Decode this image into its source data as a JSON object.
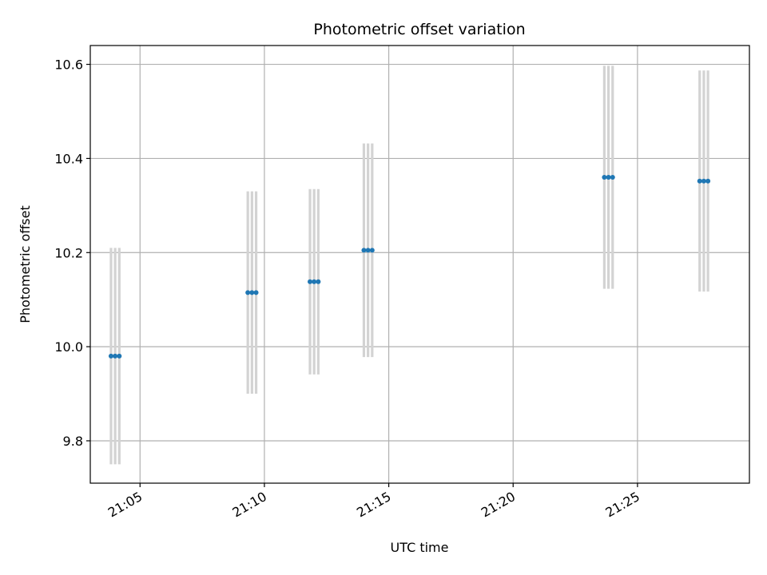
{
  "chart_data": {
    "type": "scatter",
    "title": "Photometric offset variation",
    "xlabel": "UTC time",
    "ylabel": "Photometric offset",
    "x_axis": {
      "kind": "time",
      "range": [
        "21:03:00",
        "21:29:30"
      ],
      "ticks": [
        "21:05",
        "21:10",
        "21:15",
        "21:20",
        "21:25"
      ]
    },
    "y_axis": {
      "range": [
        9.71,
        10.64
      ],
      "ticks": [
        "9.8",
        "10.0",
        "10.2",
        "10.4",
        "10.6"
      ]
    },
    "grid": true,
    "colors": {
      "points": "#1f77b4",
      "error_bars": "#d3d3d3",
      "grid": "#b0b0b0"
    },
    "series": [
      {
        "points": [
          {
            "time": "21:03:50",
            "y": 9.98,
            "err": 0.23
          },
          {
            "time": "21:04:00",
            "y": 9.98,
            "err": 0.23
          },
          {
            "time": "21:04:10",
            "y": 9.98,
            "err": 0.23
          },
          {
            "time": "21:09:20",
            "y": 10.115,
            "err": 0.215
          },
          {
            "time": "21:09:30",
            "y": 10.115,
            "err": 0.215
          },
          {
            "time": "21:09:40",
            "y": 10.115,
            "err": 0.215
          },
          {
            "time": "21:11:50",
            "y": 10.138,
            "err": 0.197
          },
          {
            "time": "21:12:00",
            "y": 10.138,
            "err": 0.197
          },
          {
            "time": "21:12:10",
            "y": 10.138,
            "err": 0.197
          },
          {
            "time": "21:14:00",
            "y": 10.205,
            "err": 0.227
          },
          {
            "time": "21:14:10",
            "y": 10.205,
            "err": 0.227
          },
          {
            "time": "21:14:20",
            "y": 10.205,
            "err": 0.227
          },
          {
            "time": "21:23:40",
            "y": 10.36,
            "err": 0.237
          },
          {
            "time": "21:23:50",
            "y": 10.36,
            "err": 0.237
          },
          {
            "time": "21:24:00",
            "y": 10.36,
            "err": 0.237
          },
          {
            "time": "21:27:30",
            "y": 10.352,
            "err": 0.235
          },
          {
            "time": "21:27:40",
            "y": 10.352,
            "err": 0.235
          },
          {
            "time": "21:27:50",
            "y": 10.352,
            "err": 0.235
          }
        ]
      }
    ]
  }
}
